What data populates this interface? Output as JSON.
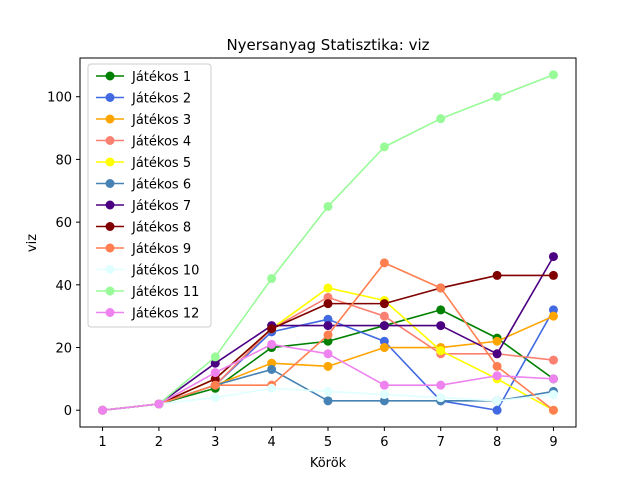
{
  "chart_data": {
    "type": "line",
    "title": "Nyersanyag Statisztika: viz",
    "xlabel": "Körök",
    "ylabel": "viz",
    "x": [
      1,
      2,
      3,
      4,
      5,
      6,
      7,
      8,
      9
    ],
    "xlim": [
      0.6,
      9.4
    ],
    "ylim": [
      -5.35,
      112.35
    ],
    "xticks": [
      "1",
      "2",
      "3",
      "4",
      "5",
      "6",
      "7",
      "8",
      "9"
    ],
    "yticks": [
      0,
      20,
      40,
      60,
      80,
      100
    ],
    "grid": false,
    "legend_position": "upper-left",
    "series": [
      {
        "name": "Játékos 1",
        "color": "#008000",
        "values": [
          0,
          2,
          7,
          20,
          22,
          27,
          32,
          23,
          10
        ]
      },
      {
        "name": "Játékos 2",
        "color": "#4169e1",
        "values": [
          0,
          2,
          8,
          25,
          29,
          22,
          3,
          0,
          32
        ]
      },
      {
        "name": "Játékos 3",
        "color": "#ffa500",
        "values": [
          0,
          2,
          8,
          15,
          14,
          20,
          20,
          22,
          30
        ]
      },
      {
        "name": "Játékos 4",
        "color": "#fa8072",
        "values": [
          0,
          2,
          8,
          26,
          36,
          30,
          18,
          18,
          16
        ]
      },
      {
        "name": "Játékos 5",
        "color": "#ffff00",
        "values": [
          0,
          2,
          10,
          26,
          39,
          35,
          19,
          10,
          0
        ]
      },
      {
        "name": "Játékos 6",
        "color": "#4682b4",
        "values": [
          0,
          2,
          8,
          13,
          3,
          3,
          3,
          3,
          6
        ]
      },
      {
        "name": "Játékos 7",
        "color": "#4b0082",
        "values": [
          0,
          2,
          15,
          27,
          27,
          27,
          27,
          18,
          49
        ]
      },
      {
        "name": "Játékos 8",
        "color": "#800000",
        "values": [
          0,
          2,
          10,
          26,
          34,
          34,
          39,
          43,
          43
        ]
      },
      {
        "name": "Játékos 9",
        "color": "#ff7f50",
        "values": [
          0,
          2,
          8,
          8,
          24,
          47,
          39,
          14,
          0
        ]
      },
      {
        "name": "Játékos 10",
        "color": "#e0ffff",
        "values": [
          0,
          2,
          4,
          7,
          6,
          5,
          4,
          3,
          5
        ]
      },
      {
        "name": "Játékos 11",
        "color": "#98fb98",
        "values": [
          0,
          2,
          17,
          42,
          65,
          84,
          93,
          100,
          107
        ]
      },
      {
        "name": "Játékos 12",
        "color": "#ee82ee",
        "values": [
          0,
          2,
          12,
          21,
          18,
          8,
          8,
          11,
          10
        ]
      }
    ]
  }
}
